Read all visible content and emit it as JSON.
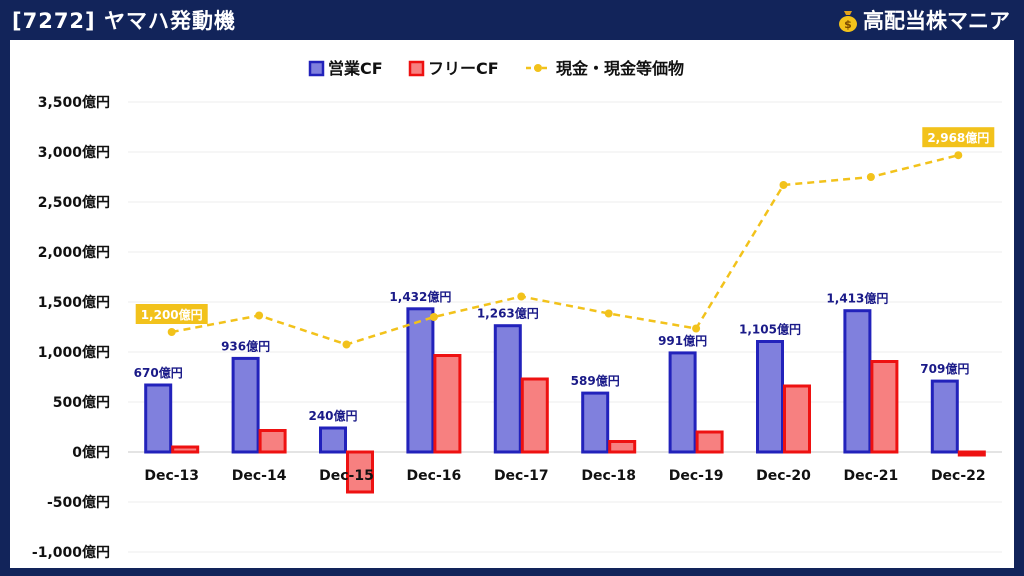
{
  "header": {
    "title": "[7272] ヤマハ発動機",
    "brand": "高配当株マニア",
    "brand_icon": "money-bag-icon"
  },
  "colors": {
    "background": "#12245a",
    "operating_cf": "#2222bb",
    "operating_cf_fill": "#8080dd",
    "free_cf": "#ee1111",
    "free_cf_fill": "#f78080",
    "cash": "#f2c21b"
  },
  "chart_data": {
    "type": "bar",
    "categories": [
      "Dec-13",
      "Dec-14",
      "Dec-15",
      "Dec-16",
      "Dec-17",
      "Dec-18",
      "Dec-19",
      "Dec-20",
      "Dec-21",
      "Dec-22"
    ],
    "series": [
      {
        "name": "営業CF",
        "type": "bar",
        "values": [
          670,
          936,
          240,
          1432,
          1263,
          589,
          991,
          1105,
          1413,
          709
        ],
        "labels": [
          "670億円",
          "936億円",
          "240億円",
          "1,432億円",
          "1,263億円",
          "589億円",
          "991億円",
          "1,105億円",
          "1,413億円",
          "709億円"
        ]
      },
      {
        "name": "フリーCF",
        "type": "bar",
        "values": [
          50,
          215,
          -400,
          965,
          730,
          105,
          200,
          660,
          905,
          -30
        ]
      },
      {
        "name": "現金・現金等価物",
        "type": "line",
        "values": [
          1200,
          1365,
          1075,
          1350,
          1555,
          1385,
          1235,
          2670,
          2750,
          2968
        ],
        "point_labels": {
          "0": "1,200億円",
          "9": "2,968億円"
        }
      }
    ],
    "ylim": [
      -1000,
      3500
    ],
    "yticks": [
      "3,500億円",
      "3,000億円",
      "2,500億円",
      "2,000億円",
      "1,500億円",
      "1,000億円",
      "500億円",
      "0億円",
      "-500億円",
      "-1,000億円"
    ],
    "ytick_values": [
      3500,
      3000,
      2500,
      2000,
      1500,
      1000,
      500,
      0,
      -500,
      -1000
    ],
    "legend": {
      "position": "top",
      "items": [
        "営業CF",
        "フリーCF",
        "現金・現金等価物"
      ]
    },
    "grid": true
  }
}
